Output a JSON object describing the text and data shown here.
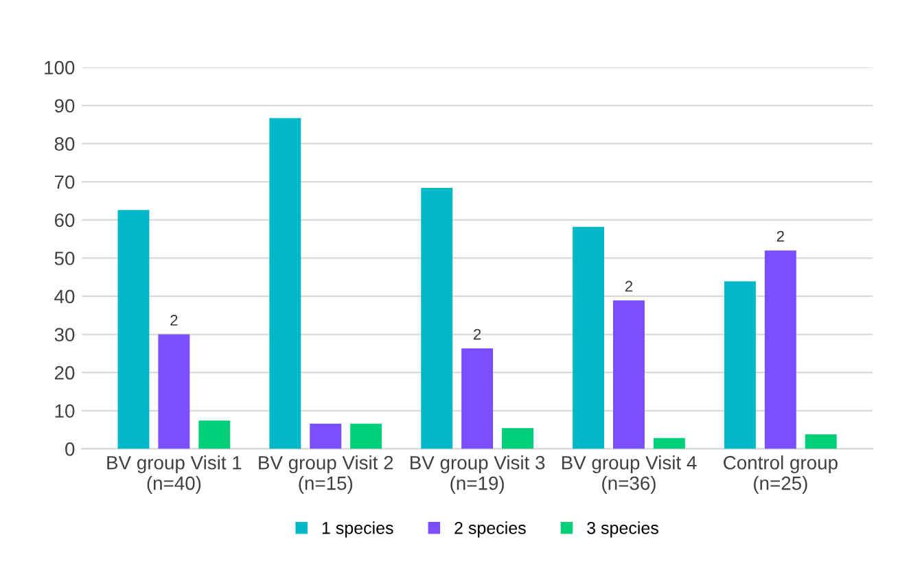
{
  "chart_data": {
    "type": "bar",
    "categories": [
      "BV group Visit 1\n(n=40)",
      "BV group Visit 2\n(n=15)",
      "BV group Visit 3\n(n=19)",
      "BV group Visit 4\n(n=36)",
      "Control group\n(n=25)"
    ],
    "series": [
      {
        "name": "1 species",
        "color": "#00b8c8",
        "values": [
          62.6,
          86.7,
          68.4,
          58.2,
          43.9
        ]
      },
      {
        "name": "2 species",
        "color": "#7b4fff",
        "values": [
          30,
          6.6,
          26.3,
          38.9,
          52
        ]
      },
      {
        "name": "3 species",
        "color": "#00cf7a",
        "values": [
          7.4,
          6.6,
          5.4,
          2.8,
          3.8
        ]
      }
    ],
    "ylim": [
      0,
      100
    ],
    "yticks": [
      0,
      10,
      20,
      30,
      40,
      50,
      60,
      70,
      80,
      90,
      100
    ],
    "annotations": [
      {
        "text": "2",
        "x": "BV group Visit 1\n(n=40)",
        "y": 30
      },
      {
        "text": "2",
        "x": "BV group Visit 3\n(n=19)",
        "y": 26.3
      },
      {
        "text": "2",
        "x": "BV group Visit 4\n(n=36)",
        "y": 38.9
      },
      {
        "text": "2",
        "x": "Control group\n(n=25)",
        "y": 52
      }
    ],
    "grid": "y",
    "legend": "bottom"
  }
}
